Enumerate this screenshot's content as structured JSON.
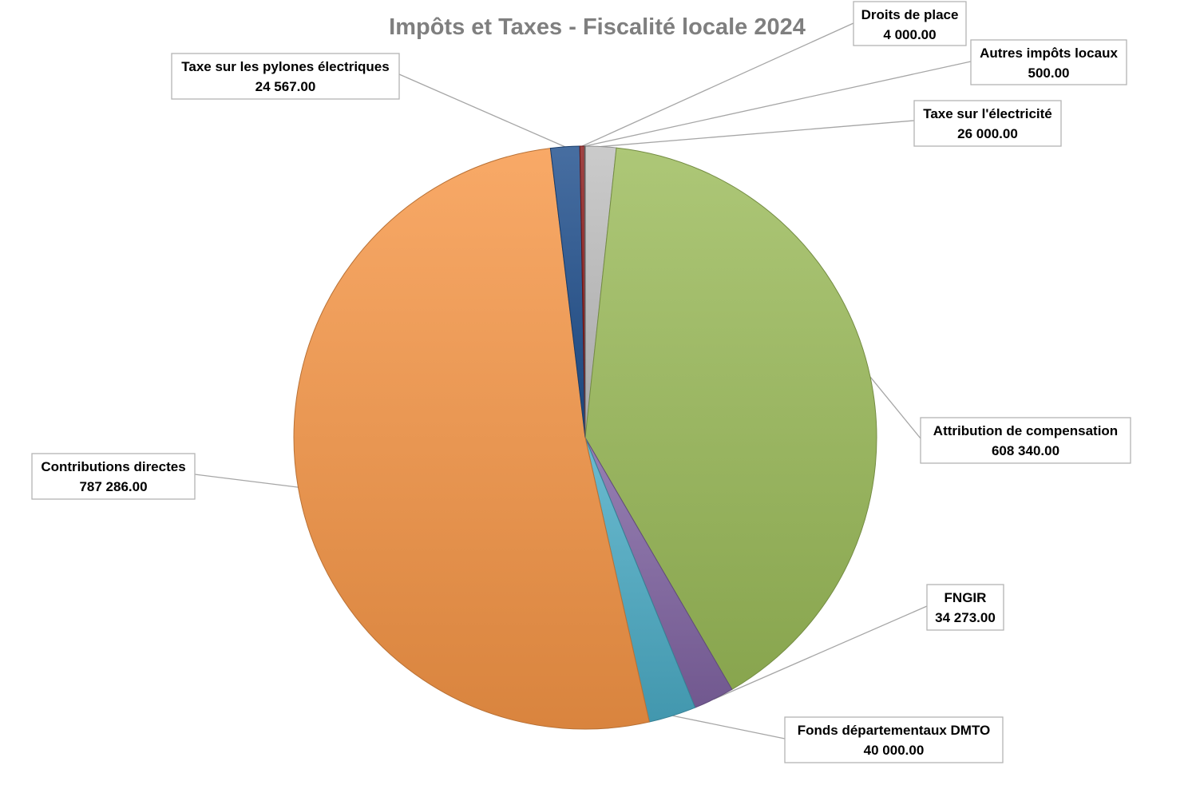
{
  "chart_data": {
    "type": "pie",
    "title": "Impôts et Taxes - Fiscalité locale 2024",
    "slices": [
      {
        "label": "Taxe sur l'électricité",
        "value": 26000.0,
        "value_label": "26 000.00",
        "color": "#BFBFBF"
      },
      {
        "label": "Attribution de compensation",
        "value": 608340.0,
        "value_label": "608 340.00",
        "color": "#9BBB59"
      },
      {
        "label": "FNGIR",
        "value": 34273.0,
        "value_label": "34 273.00",
        "color": "#8064A2"
      },
      {
        "label": "Fonds départementaux DMTO",
        "value": 40000.0,
        "value_label": "40 000.00",
        "color": "#4BACC6"
      },
      {
        "label": "Contributions directes",
        "value": 787286.0,
        "value_label": "787 286.00",
        "color": "#F79646"
      },
      {
        "label": "Taxe sur les pylones électriques",
        "value": 24567.0,
        "value_label": "24 567.00",
        "color": "#1F4E8C"
      },
      {
        "label": "Droits de place",
        "value": 4000.0,
        "value_label": "4 000.00",
        "color": "#8B1A1A"
      },
      {
        "label": "Autres impôts locaux",
        "value": 500.0,
        "value_label": "500.00",
        "color": "#7F7F7F"
      }
    ]
  }
}
